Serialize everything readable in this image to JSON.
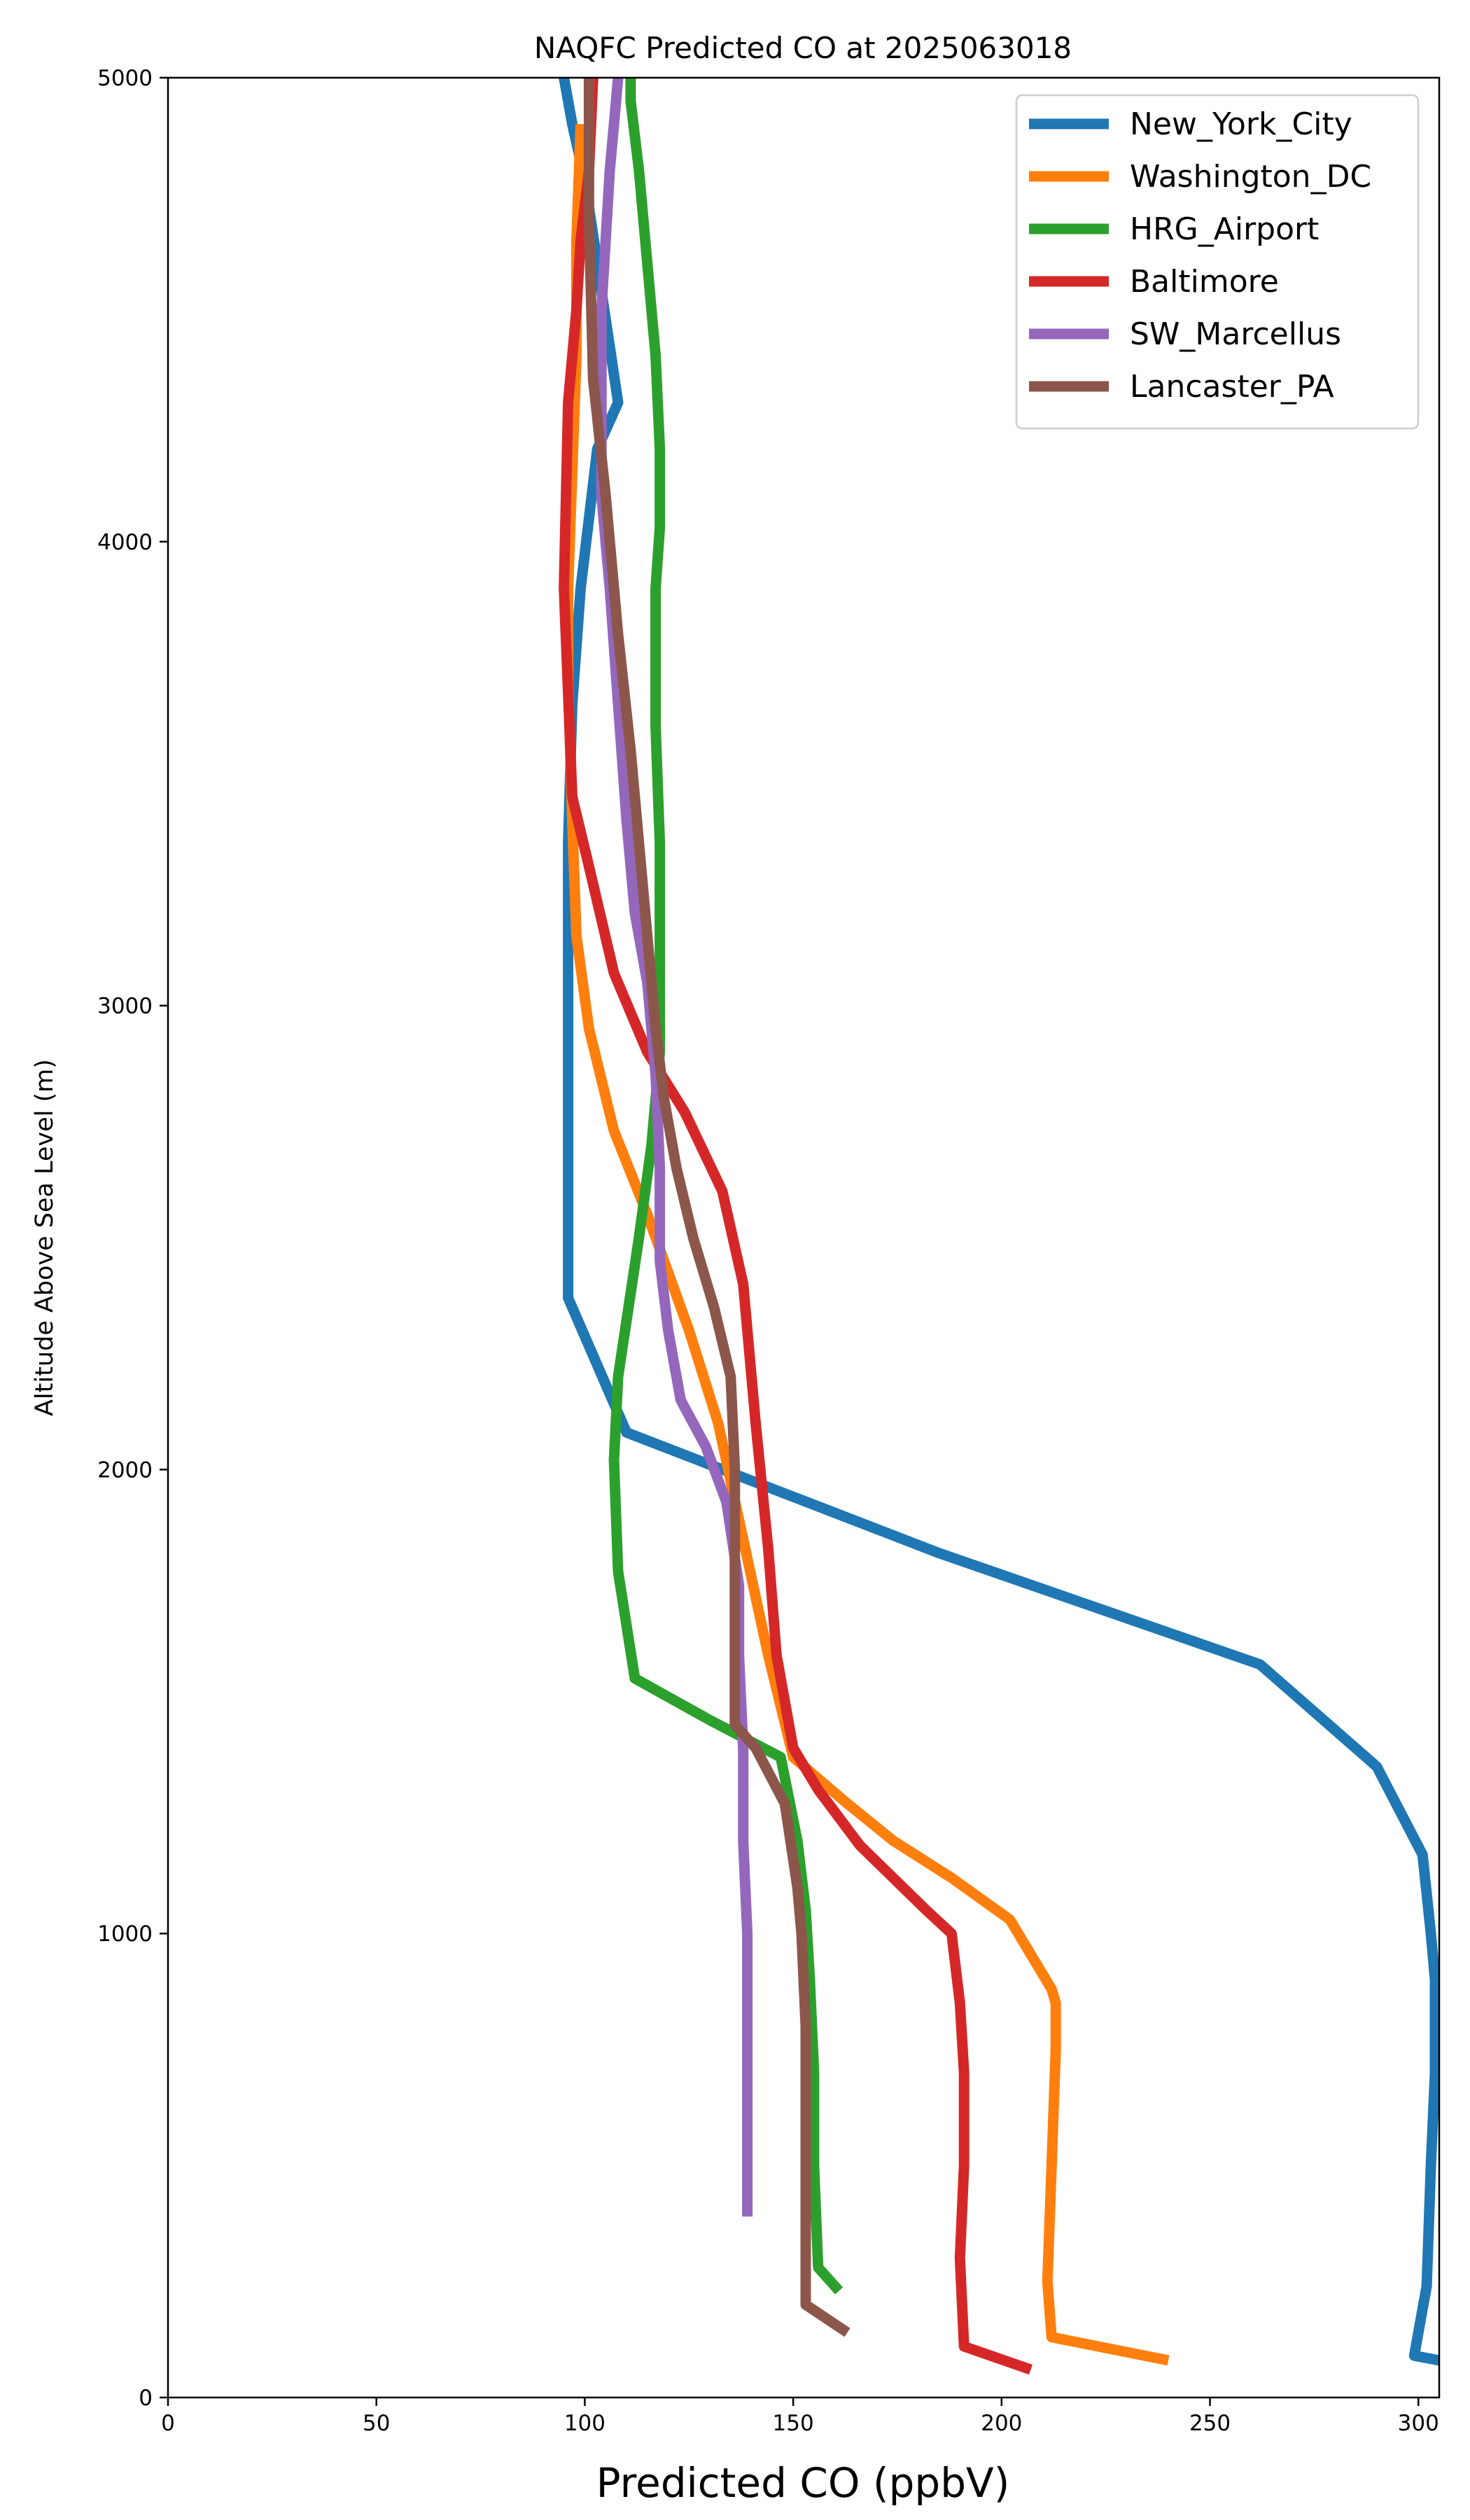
{
  "chart_data": {
    "type": "line",
    "title": "NAQFC Predicted CO at 2025063018",
    "xlabel": "Predicted CO (ppbV)",
    "ylabel": "Altitude Above Sea Level (m)",
    "xlim": [
      0,
      305
    ],
    "ylim": [
      0,
      5000
    ],
    "xticks": [
      0,
      50,
      100,
      150,
      200,
      250,
      300
    ],
    "yticks": [
      0,
      1000,
      2000,
      3000,
      4000,
      5000
    ],
    "grid": false,
    "legend_position": "top-right",
    "series": [
      {
        "name": "New_York_City",
        "color": "#1f77b4",
        "x": [
          305,
          299,
          300,
          302,
          303,
          304,
          304,
          303,
          301,
          290,
          262,
          185,
          110,
          96,
          96,
          96,
          96,
          96,
          97,
          99,
          101,
          103,
          108,
          103,
          100,
          97,
          95
        ],
        "y": [
          80,
          90,
          140,
          240,
          500,
          700,
          900,
          1000,
          1170,
          1360,
          1580,
          1820,
          2080,
          2370,
          2650,
          2850,
          3050,
          3350,
          3650,
          3900,
          4050,
          4200,
          4300,
          4600,
          4780,
          4900,
          5000
        ]
      },
      {
        "name": "Washington_DC",
        "color": "#ff7f0e",
        "x": [
          240,
          212,
          211,
          212,
          213,
          213,
          212,
          202,
          188,
          174,
          163,
          150,
          144,
          138,
          132,
          125,
          115,
          107,
          101,
          98,
          97,
          96,
          96,
          97,
          98,
          98,
          99
        ],
        "y": [
          80,
          130,
          250,
          500,
          750,
          850,
          880,
          1030,
          1120,
          1200,
          1280,
          1380,
          1600,
          1850,
          2100,
          2300,
          2550,
          2730,
          2950,
          3150,
          3400,
          3700,
          3900,
          4150,
          4400,
          4650,
          4900
        ]
      },
      {
        "name": "HRG_Airport",
        "color": "#2ca02c",
        "x": [
          161,
          156,
          155,
          155,
          154,
          153,
          151,
          147,
          130,
          112,
          108,
          107,
          108,
          113,
          116,
          118,
          118,
          118,
          117,
          117,
          118,
          118,
          117,
          115,
          113,
          111,
          111
        ],
        "y": [
          230,
          280,
          500,
          700,
          900,
          1050,
          1200,
          1380,
          1460,
          1550,
          1780,
          2020,
          2200,
          2500,
          2700,
          2900,
          3150,
          3350,
          3600,
          3900,
          4030,
          4200,
          4400,
          4600,
          4800,
          4950,
          5000
        ]
      },
      {
        "name": "Baltimore",
        "color": "#d62728",
        "x": [
          207,
          191,
          190,
          191,
          191,
          190,
          188,
          182,
          166,
          156,
          150,
          146,
          144,
          141,
          138,
          133,
          124,
          115,
          107,
          101,
          97,
          95,
          96,
          98,
          99,
          101,
          102
        ],
        "y": [
          60,
          110,
          300,
          500,
          700,
          850,
          1000,
          1050,
          1190,
          1310,
          1400,
          1600,
          1830,
          2100,
          2400,
          2600,
          2770,
          2900,
          3070,
          3300,
          3450,
          3900,
          4300,
          4500,
          4650,
          4800,
          5000
        ]
      },
      {
        "name": "SW_Marcellus",
        "color": "#9467bd",
        "x": [
          139,
          139,
          139,
          139,
          138,
          138,
          137,
          137,
          134,
          129,
          123,
          120,
          118,
          118,
          117,
          115,
          112,
          110,
          108,
          106,
          104,
          104,
          104,
          105,
          106,
          107,
          108
        ],
        "y": [
          390,
          600,
          800,
          1000,
          1200,
          1400,
          1600,
          1750,
          1930,
          2050,
          2150,
          2300,
          2450,
          2650,
          2850,
          3050,
          3200,
          3400,
          3650,
          3900,
          4100,
          4300,
          4500,
          4650,
          4800,
          4900,
          5000
        ]
      },
      {
        "name": "Lancaster_PA",
        "color": "#8c564b",
        "x": [
          163,
          153,
          153,
          153,
          153,
          152,
          151,
          148,
          141,
          136,
          136,
          136,
          136,
          135,
          131,
          126,
          122,
          119,
          117,
          115,
          113,
          111,
          108,
          105,
          102,
          101,
          101
        ],
        "y": [
          140,
          200,
          400,
          600,
          800,
          1000,
          1100,
          1280,
          1400,
          1450,
          1600,
          1800,
          2000,
          2200,
          2350,
          2500,
          2650,
          2800,
          2950,
          3150,
          3350,
          3550,
          3800,
          4100,
          4350,
          4700,
          5000
        ]
      }
    ]
  }
}
